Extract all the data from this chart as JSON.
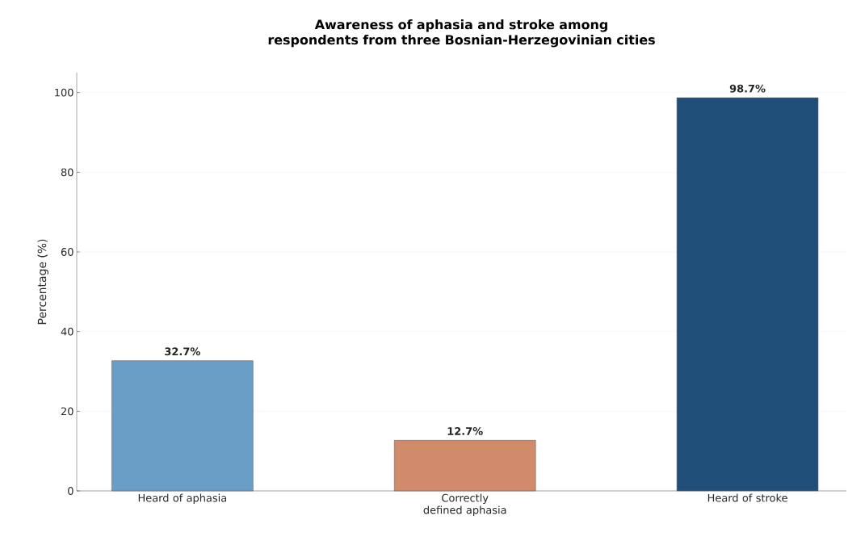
{
  "chart_data": {
    "type": "bar",
    "title": "Awareness of aphasia and stroke among respondents from three Bosnian-Herzegovinian cities",
    "ylabel": "Percentage (%)",
    "categories": [
      "Heard of aphasia",
      "Correctly defined aphasia",
      "Heard of stroke"
    ],
    "values": [
      32.7,
      12.7,
      98.7
    ],
    "colors": [
      "#6b9ec6",
      "#cf8b6a",
      "#1f4e79"
    ],
    "value_labels": [
      "32.7%",
      "12.7%",
      "98.7%"
    ],
    "ylim": [
      0,
      105
    ],
    "yticks": [
      0,
      20,
      40,
      60,
      80,
      100
    ],
    "grid": "y"
  }
}
